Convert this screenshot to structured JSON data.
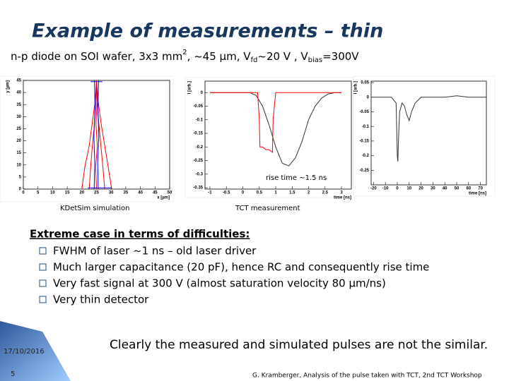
{
  "slide": {
    "title": "Example of measurements – thin",
    "subtitle": [
      "n-p diode on SOI wafer, 3x3 mm",
      "2",
      ", ~45 µm, V",
      "fd",
      "~20 V , V",
      "bias",
      "=300V"
    ],
    "captions": [
      "KDetSim simulation",
      "TCT measurement"
    ],
    "bullets_heading": "Extreme case in terms of difficulties:",
    "bullets": [
      "FWHM of laser ~1 ns – old laser driver",
      "Much larger capacitance (20 pF), hence RC and consequently rise time",
      "Very fast signal at 300 V (almost saturation velocity 80 µm/ns)",
      "Very thin detector"
    ],
    "conclusion": "Clearly the measured and simulated pulses are not the similar.",
    "date": "17/10/2016",
    "page": "5",
    "footer": "G. Kramberger, Analysis of the pulse taken with TCT, 2nd TCT Workshop"
  },
  "chart_data": [
    {
      "type": "line",
      "xlabel": "x [µm]",
      "ylabel": "y [µm]",
      "xlim": [
        0,
        50
      ],
      "ylim": [
        0,
        45
      ],
      "xticks": [
        0,
        5,
        10,
        15,
        20,
        25,
        30,
        35,
        40,
        45,
        50
      ],
      "yticks": [
        0,
        5,
        10,
        15,
        20,
        25,
        30,
        35,
        40,
        45
      ],
      "series": [
        {
          "color": "#ff0000",
          "x": [
            25,
            24.5,
            23.5,
            22.5,
            21,
            20
          ],
          "values": [
            45,
            36,
            27,
            18,
            9,
            0
          ]
        },
        {
          "color": "#ff0000",
          "x": [
            25,
            24.8,
            24.3,
            23.6,
            23,
            22.5
          ],
          "values": [
            45,
            36,
            27,
            18,
            9,
            0
          ]
        },
        {
          "color": "#ff0000",
          "x": [
            25,
            25.2,
            24.8,
            25.3,
            24.7,
            25
          ],
          "values": [
            45,
            36,
            27,
            18,
            9,
            0
          ]
        },
        {
          "color": "#ff0000",
          "x": [
            25,
            25.3,
            25.8,
            26.5,
            27.2,
            27.8
          ],
          "values": [
            45,
            36,
            27,
            18,
            9,
            0
          ]
        },
        {
          "color": "#ff0000",
          "x": [
            25,
            25.6,
            26.6,
            27.8,
            29,
            30.2
          ],
          "values": [
            45,
            36,
            27,
            18,
            9,
            0
          ]
        },
        {
          "color": "#0000ff",
          "x": [
            24.2,
            24.4,
            24.1,
            24.5,
            24.3
          ],
          "values": [
            0,
            11,
            22,
            33,
            45
          ]
        },
        {
          "color": "#0000ff",
          "x": [
            25.6,
            25.4,
            25.8,
            25.5,
            25.7
          ],
          "values": [
            0,
            11,
            22,
            33,
            45
          ]
        },
        {
          "color": "#0000ff",
          "x": [
            22,
            30
          ],
          "values": [
            0.5,
            0.5
          ]
        },
        {
          "color": "#0000ff",
          "x": [
            23,
            27
          ],
          "values": [
            44.5,
            44.5
          ]
        }
      ]
    },
    {
      "type": "line",
      "xlabel": "time [ns]",
      "ylabel": "I [arb.]",
      "annotation": "rise time ~1.5 ns",
      "xlim": [
        -1.15,
        3.3
      ],
      "ylim": [
        -0.355,
        0.042
      ],
      "xticks": [
        -1,
        -0.5,
        0,
        0.5,
        1,
        1.5,
        2,
        2.5,
        3
      ],
      "yticks": [
        0,
        -0.05,
        -0.1,
        -0.15,
        -0.2,
        -0.25,
        -0.3,
        -0.35
      ],
      "series": [
        {
          "color": "#333333",
          "x": [
            -1,
            -0.5,
            0,
            0.2,
            0.4,
            0.6,
            0.8,
            1.0,
            1.2,
            1.4,
            1.6,
            1.8,
            2.0,
            2.2,
            2.4,
            2.6,
            2.8,
            3.0
          ],
          "values": [
            0,
            0,
            0,
            0,
            -0.01,
            -0.05,
            -0.12,
            -0.2,
            -0.26,
            -0.27,
            -0.24,
            -0.18,
            -0.1,
            -0.05,
            -0.02,
            -0.005,
            0,
            0
          ]
        },
        {
          "color": "#ff0000",
          "x": [
            -1,
            0.45,
            0.5,
            0.52,
            0.6,
            0.7,
            0.8,
            0.9,
            0.92,
            1.0,
            3.0
          ],
          "values": [
            0,
            0,
            -0.1,
            -0.2,
            -0.2,
            -0.21,
            -0.21,
            -0.22,
            -0.1,
            0,
            0
          ]
        }
      ]
    },
    {
      "type": "line",
      "xlabel": "time [ns]",
      "ylabel": "I [arb.]",
      "xlim": [
        -22,
        75
      ],
      "ylim": [
        -0.3,
        0.055
      ],
      "xticks": [
        -20,
        -10,
        0,
        10,
        20,
        30,
        40,
        50,
        60,
        70
      ],
      "yticks": [
        0.05,
        0,
        -0.05,
        -0.1,
        -0.15,
        -0.2,
        -0.25
      ],
      "series": [
        {
          "color": "#333333",
          "x": [
            -22,
            -5,
            -1,
            0,
            0.5,
            1,
            2,
            4,
            6,
            8,
            10,
            12,
            15,
            20,
            30,
            40,
            50,
            60,
            70,
            75
          ],
          "values": [
            0,
            0,
            -0.02,
            -0.2,
            -0.22,
            -0.15,
            -0.05,
            -0.02,
            -0.03,
            -0.06,
            -0.08,
            -0.05,
            -0.02,
            0,
            0,
            0,
            0.005,
            0,
            0,
            0
          ]
        }
      ]
    }
  ]
}
